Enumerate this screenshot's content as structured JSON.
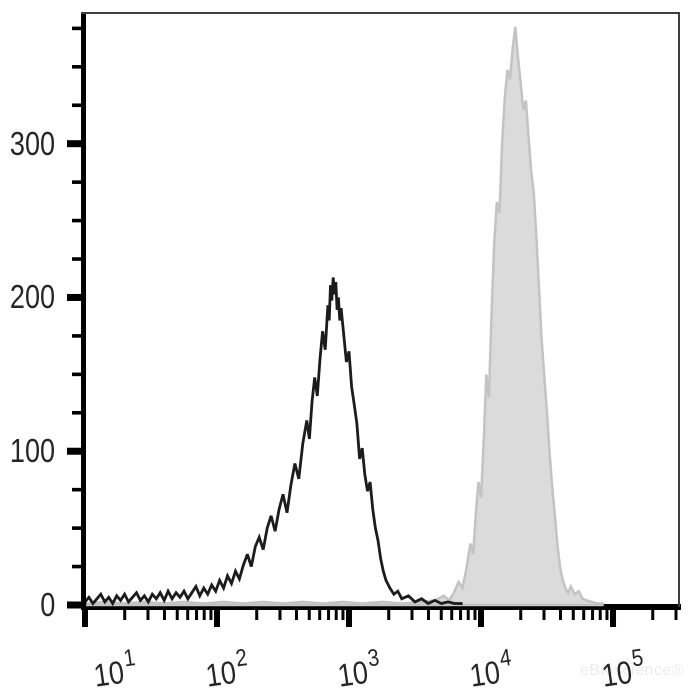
{
  "figure": {
    "background": "#ffffff"
  },
  "watermark": {
    "text": "eBioscience®"
  },
  "colors": {
    "axis": "#000000",
    "border": "#3f3f3f",
    "tick_label": "#262626",
    "watermark": "#ececec"
  },
  "chart_data": {
    "type": "area",
    "subtype": "flow-cytometry-histogram-overlay",
    "title": "",
    "xlabel": "",
    "ylabel": "",
    "grid": false,
    "legend": null,
    "x_scale": "log10",
    "x_range_log10": [
      0.985,
      5.515
    ],
    "ylim": [
      0,
      385
    ],
    "y_axis": {
      "major_ticks": [
        0,
        100,
        200,
        300
      ],
      "labels": [
        "0",
        "100",
        "200",
        "300"
      ],
      "minor_tick_step": 25,
      "minor_tick_max": 375
    },
    "x_axis": {
      "ticks": [
        {
          "value": 1,
          "base": "10",
          "exp": "1"
        },
        {
          "value": 2,
          "base": "10",
          "exp": "2"
        },
        {
          "value": 3,
          "base": "10",
          "exp": "3"
        },
        {
          "value": 4,
          "base": "10",
          "exp": "4"
        },
        {
          "value": 5,
          "base": "10",
          "exp": "5"
        }
      ],
      "minor_multiples": [
        2,
        3,
        4,
        5,
        6,
        7,
        8,
        9
      ]
    },
    "series": [
      {
        "name": "gray-filled-histogram",
        "style": "filled",
        "fill": "#dbdbdb",
        "stroke": "#c3c3c3",
        "stroke_width": 2.5,
        "peak": {
          "x_log10": 4.26,
          "count": 376
        },
        "points": [
          [
            1.0,
            1
          ],
          [
            1.15,
            2
          ],
          [
            1.3,
            1
          ],
          [
            1.45,
            2
          ],
          [
            1.6,
            1
          ],
          [
            1.75,
            2
          ],
          [
            1.9,
            1
          ],
          [
            2.05,
            2
          ],
          [
            2.2,
            1
          ],
          [
            2.35,
            2
          ],
          [
            2.5,
            1
          ],
          [
            2.65,
            2
          ],
          [
            2.8,
            1
          ],
          [
            2.95,
            2
          ],
          [
            3.1,
            1
          ],
          [
            3.25,
            2
          ],
          [
            3.4,
            1
          ],
          [
            3.55,
            2
          ],
          [
            3.65,
            3
          ],
          [
            3.72,
            6
          ],
          [
            3.76,
            3
          ],
          [
            3.8,
            9
          ],
          [
            3.83,
            15
          ],
          [
            3.86,
            11
          ],
          [
            3.89,
            24
          ],
          [
            3.92,
            40
          ],
          [
            3.94,
            33
          ],
          [
            3.96,
            58
          ],
          [
            3.98,
            80
          ],
          [
            4.0,
            70
          ],
          [
            4.02,
            105
          ],
          [
            4.04,
            150
          ],
          [
            4.06,
            135
          ],
          [
            4.08,
            190
          ],
          [
            4.1,
            235
          ],
          [
            4.12,
            262
          ],
          [
            4.14,
            255
          ],
          [
            4.16,
            300
          ],
          [
            4.18,
            330
          ],
          [
            4.2,
            348
          ],
          [
            4.22,
            342
          ],
          [
            4.24,
            362
          ],
          [
            4.26,
            376
          ],
          [
            4.28,
            356
          ],
          [
            4.3,
            340
          ],
          [
            4.32,
            322
          ],
          [
            4.34,
            328
          ],
          [
            4.36,
            305
          ],
          [
            4.38,
            282
          ],
          [
            4.4,
            268
          ],
          [
            4.42,
            238
          ],
          [
            4.44,
            205
          ],
          [
            4.46,
            172
          ],
          [
            4.48,
            148
          ],
          [
            4.5,
            125
          ],
          [
            4.52,
            98
          ],
          [
            4.54,
            76
          ],
          [
            4.56,
            58
          ],
          [
            4.58,
            38
          ],
          [
            4.6,
            24
          ],
          [
            4.62,
            16
          ],
          [
            4.64,
            11
          ],
          [
            4.66,
            8
          ],
          [
            4.68,
            12
          ],
          [
            4.71,
            7
          ],
          [
            4.74,
            9
          ],
          [
            4.77,
            4
          ],
          [
            4.8,
            3
          ],
          [
            4.84,
            2
          ],
          [
            4.88,
            1
          ],
          [
            4.92,
            1
          ]
        ]
      },
      {
        "name": "black-outline-histogram",
        "style": "open",
        "fill": "none",
        "stroke": "#1c1c1c",
        "stroke_width": 2.8,
        "peak": {
          "x_log10": 2.88,
          "count": 213
        },
        "points": [
          [
            1.0,
            2
          ],
          [
            1.03,
            5
          ],
          [
            1.06,
            1
          ],
          [
            1.09,
            4
          ],
          [
            1.12,
            7
          ],
          [
            1.15,
            2
          ],
          [
            1.18,
            5
          ],
          [
            1.21,
            1
          ],
          [
            1.24,
            6
          ],
          [
            1.27,
            3
          ],
          [
            1.3,
            7
          ],
          [
            1.33,
            2
          ],
          [
            1.36,
            5
          ],
          [
            1.39,
            8
          ],
          [
            1.42,
            3
          ],
          [
            1.45,
            6
          ],
          [
            1.48,
            2
          ],
          [
            1.51,
            7
          ],
          [
            1.54,
            4
          ],
          [
            1.57,
            8
          ],
          [
            1.6,
            3
          ],
          [
            1.63,
            9
          ],
          [
            1.66,
            4
          ],
          [
            1.69,
            8
          ],
          [
            1.72,
            5
          ],
          [
            1.75,
            9
          ],
          [
            1.78,
            4
          ],
          [
            1.81,
            8
          ],
          [
            1.84,
            12
          ],
          [
            1.87,
            6
          ],
          [
            1.9,
            11
          ],
          [
            1.93,
            7
          ],
          [
            1.96,
            13
          ],
          [
            1.99,
            9
          ],
          [
            2.02,
            16
          ],
          [
            2.05,
            11
          ],
          [
            2.08,
            19
          ],
          [
            2.11,
            14
          ],
          [
            2.14,
            22
          ],
          [
            2.17,
            17
          ],
          [
            2.2,
            26
          ],
          [
            2.23,
            33
          ],
          [
            2.26,
            25
          ],
          [
            2.29,
            38
          ],
          [
            2.32,
            44
          ],
          [
            2.35,
            36
          ],
          [
            2.38,
            50
          ],
          [
            2.41,
            58
          ],
          [
            2.44,
            48
          ],
          [
            2.47,
            62
          ],
          [
            2.5,
            72
          ],
          [
            2.53,
            60
          ],
          [
            2.56,
            78
          ],
          [
            2.59,
            92
          ],
          [
            2.62,
            82
          ],
          [
            2.65,
            105
          ],
          [
            2.68,
            120
          ],
          [
            2.7,
            108
          ],
          [
            2.72,
            132
          ],
          [
            2.74,
            148
          ],
          [
            2.76,
            136
          ],
          [
            2.78,
            160
          ],
          [
            2.8,
            178
          ],
          [
            2.82,
            166
          ],
          [
            2.84,
            195
          ],
          [
            2.85,
            185
          ],
          [
            2.86,
            208
          ],
          [
            2.87,
            198
          ],
          [
            2.88,
            213
          ],
          [
            2.89,
            202
          ],
          [
            2.9,
            210
          ],
          [
            2.91,
            192
          ],
          [
            2.92,
            200
          ],
          [
            2.93,
            185
          ],
          [
            2.94,
            193
          ],
          [
            2.96,
            176
          ],
          [
            2.98,
            158
          ],
          [
            3.0,
            165
          ],
          [
            3.02,
            142
          ],
          [
            3.04,
            130
          ],
          [
            3.06,
            118
          ],
          [
            3.08,
            95
          ],
          [
            3.1,
            102
          ],
          [
            3.12,
            85
          ],
          [
            3.14,
            74
          ],
          [
            3.16,
            80
          ],
          [
            3.18,
            62
          ],
          [
            3.2,
            50
          ],
          [
            3.22,
            42
          ],
          [
            3.24,
            30
          ],
          [
            3.26,
            22
          ],
          [
            3.28,
            16
          ],
          [
            3.31,
            11
          ],
          [
            3.34,
            7
          ],
          [
            3.37,
            9
          ],
          [
            3.4,
            4
          ],
          [
            3.45,
            6
          ],
          [
            3.5,
            2
          ],
          [
            3.55,
            4
          ],
          [
            3.6,
            1
          ],
          [
            3.65,
            3
          ],
          [
            3.7,
            1
          ],
          [
            3.75,
            2
          ],
          [
            3.8,
            1
          ],
          [
            3.85,
            1
          ]
        ]
      }
    ]
  }
}
